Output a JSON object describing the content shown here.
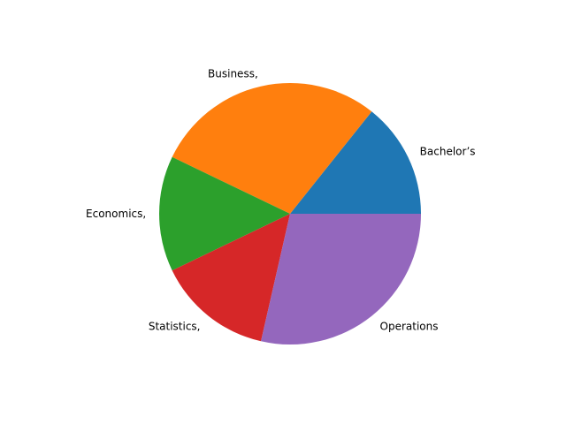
{
  "chart_data": {
    "type": "pie",
    "slices": [
      {
        "label": "Bachelor’s",
        "value": 1,
        "color": "#1f77b4"
      },
      {
        "label": "Business,",
        "value": 2,
        "color": "#ff7f0e"
      },
      {
        "label": "Economics,",
        "value": 1,
        "color": "#2ca02c"
      },
      {
        "label": "Statistics,",
        "value": 1,
        "color": "#d62728"
      },
      {
        "label": "Operations",
        "value": 2,
        "color": "#9467bd"
      }
    ],
    "start_angle_deg": 0,
    "direction": "counterclockwise",
    "legend": "none"
  }
}
